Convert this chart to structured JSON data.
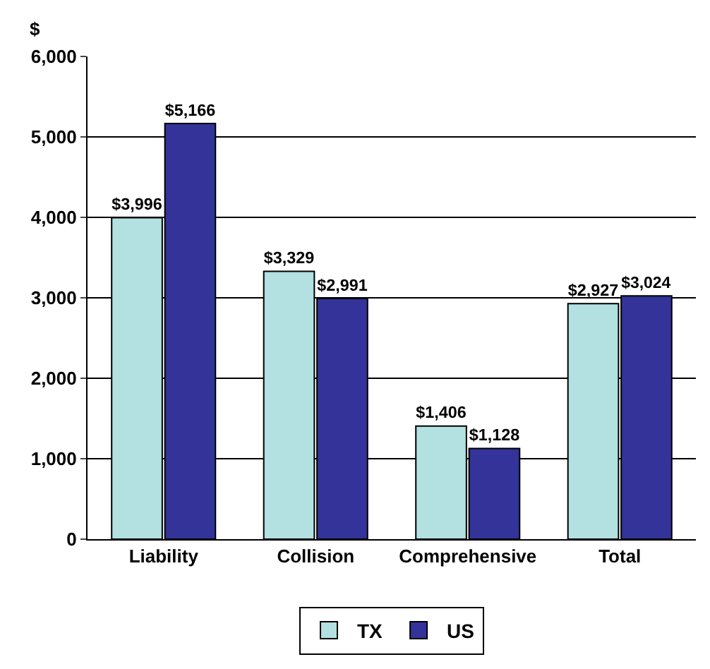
{
  "chart_data": {
    "type": "bar",
    "ylabel": "$",
    "categories": [
      "Liability",
      "Collision",
      "Comprehensive",
      "Total"
    ],
    "series": [
      {
        "name": "TX",
        "color": "#b3e0e0",
        "values": [
          3996,
          3329,
          1406,
          2927
        ],
        "value_labels": [
          "$3,996",
          "$3,329",
          "$1,406",
          "$2,927"
        ]
      },
      {
        "name": "US",
        "color": "#333399",
        "values": [
          5166,
          2991,
          1128,
          3024
        ],
        "value_labels": [
          "$5,166",
          "$2,991",
          "$1,128",
          "$3,024"
        ]
      }
    ],
    "ylim": [
      0,
      6000
    ],
    "yticks": [
      {
        "value": 0,
        "label": "0"
      },
      {
        "value": 1000,
        "label": "1,000"
      },
      {
        "value": 2000,
        "label": "2,000"
      },
      {
        "value": 3000,
        "label": "3,000"
      },
      {
        "value": 4000,
        "label": "4,000"
      },
      {
        "value": 5000,
        "label": "5,000"
      },
      {
        "value": 6000,
        "label": "6,000"
      }
    ],
    "grid": "y",
    "legend": "bottom"
  }
}
